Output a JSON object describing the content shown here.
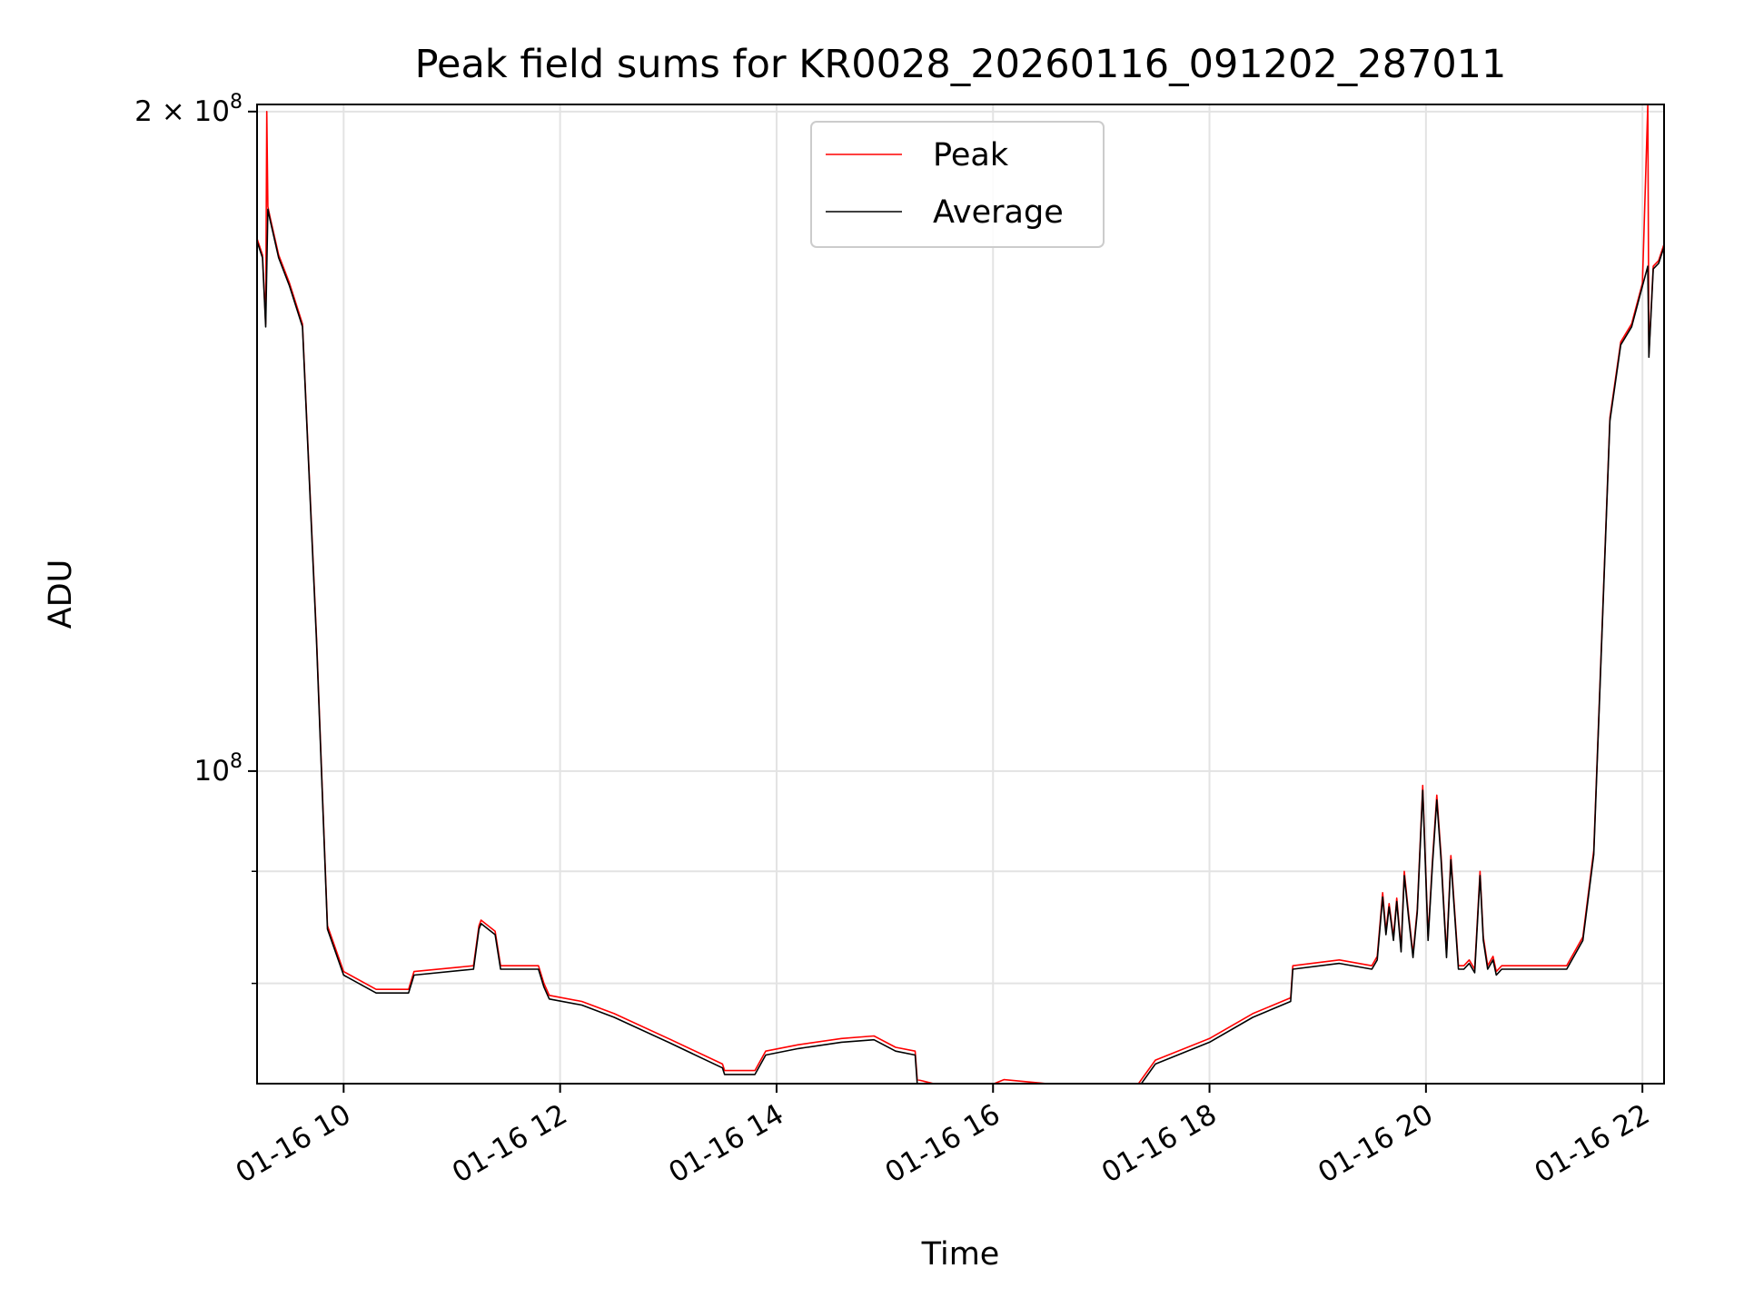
{
  "chart_data": {
    "type": "line",
    "title": "Peak field sums for KR0028_20260116_091202_287011",
    "xlabel": "Time",
    "ylabel": "ADU",
    "x_tick_labels": [
      "01-16 10",
      "01-16 12",
      "01-16 14",
      "01-16 16",
      "01-16 18",
      "01-16 20",
      "01-16 22"
    ],
    "x_tick_hours": [
      10,
      12,
      14,
      16,
      18,
      20,
      22
    ],
    "xlim_hours": [
      9.2,
      22.2
    ],
    "y_scale": "log",
    "ylim": [
      72000000,
      201500000
    ],
    "y_tick_labels": [
      {
        "value": 200000000,
        "mantissa": "2",
        "times": "×",
        "base": "10",
        "exponent": "8"
      },
      {
        "value": 100000000,
        "mantissa": "",
        "times": "",
        "base": "10",
        "exponent": "8"
      }
    ],
    "y_minor_ticks": [
      80000000,
      90000000
    ],
    "grid": true,
    "legend_position": "upper center",
    "series": [
      {
        "name": "Peak",
        "color": "#ff0000",
        "x_hours": [
          9.2,
          9.25,
          9.28,
          9.29,
          9.3,
          9.32,
          9.4,
          9.5,
          9.62,
          9.75,
          9.85,
          10.0,
          10.3,
          10.6,
          10.65,
          11.2,
          11.25,
          11.27,
          11.4,
          11.45,
          11.48,
          11.8,
          11.85,
          11.9,
          12.2,
          12.5,
          13.0,
          13.5,
          13.52,
          13.8,
          13.9,
          14.2,
          14.6,
          14.9,
          15.1,
          15.28,
          15.3,
          15.8,
          16.1,
          16.5,
          17.0,
          17.3,
          17.5,
          18.0,
          18.4,
          18.75,
          18.77,
          19.2,
          19.5,
          19.55,
          19.6,
          19.63,
          19.66,
          19.7,
          19.73,
          19.77,
          19.8,
          19.84,
          19.88,
          19.92,
          19.97,
          20.02,
          20.06,
          20.1,
          20.14,
          20.19,
          20.23,
          20.3,
          20.35,
          20.4,
          20.45,
          20.5,
          20.53,
          20.57,
          20.62,
          20.65,
          20.7,
          20.8,
          21.3,
          21.45,
          21.55,
          21.7,
          21.8,
          21.9,
          22.0,
          22.05,
          22.06,
          22.1,
          22.15,
          22.2
        ],
        "y": [
          175000000,
          172000000,
          160000000,
          200000000,
          181000000,
          179000000,
          172000000,
          167000000,
          160000000,
          115000000,
          85000000,
          81000000,
          79500000,
          79500000,
          81000000,
          81500000,
          85000000,
          85500000,
          84500000,
          81500000,
          81500000,
          81500000,
          80000000,
          79000000,
          78500000,
          77500000,
          75500000,
          73500000,
          73000000,
          73000000,
          74500000,
          75000000,
          75500000,
          75700000,
          74800000,
          74500000,
          72300000,
          71300000,
          72300000,
          72000000,
          71800000,
          71500000,
          73800000,
          75500000,
          77500000,
          78800000,
          81500000,
          82000000,
          81500000,
          82300000,
          88000000,
          84500000,
          87000000,
          84000000,
          87500000,
          83000000,
          90000000,
          86000000,
          82500000,
          86500000,
          98500000,
          84000000,
          91000000,
          97500000,
          91500000,
          82500000,
          91500000,
          81500000,
          81500000,
          82000000,
          81200000,
          90000000,
          84000000,
          81500000,
          82300000,
          81000000,
          81500000,
          81500000,
          81500000,
          84000000,
          92000000,
          145000000,
          157000000,
          160000000,
          167000000,
          201500000,
          155000000,
          170000000,
          171000000,
          174000000
        ]
      },
      {
        "name": "Average",
        "color": "#000000",
        "x_hours": [
          9.2,
          9.25,
          9.28,
          9.3,
          9.32,
          9.4,
          9.5,
          9.62,
          9.75,
          9.85,
          10.0,
          10.3,
          10.6,
          10.65,
          11.2,
          11.25,
          11.27,
          11.4,
          11.45,
          11.48,
          11.8,
          11.85,
          11.9,
          12.2,
          12.5,
          13.0,
          13.5,
          13.52,
          13.8,
          13.9,
          14.2,
          14.6,
          14.9,
          15.1,
          15.28,
          15.3,
          15.8,
          16.1,
          16.5,
          17.0,
          17.3,
          17.5,
          18.0,
          18.4,
          18.75,
          18.77,
          19.2,
          19.5,
          19.55,
          19.6,
          19.63,
          19.66,
          19.7,
          19.73,
          19.77,
          19.8,
          19.84,
          19.88,
          19.92,
          19.97,
          20.02,
          20.06,
          20.1,
          20.14,
          20.19,
          20.23,
          20.3,
          20.35,
          20.4,
          20.45,
          20.5,
          20.53,
          20.57,
          20.62,
          20.65,
          20.7,
          20.8,
          21.3,
          21.45,
          21.55,
          21.7,
          21.8,
          21.9,
          22.0,
          22.05,
          22.06,
          22.1,
          22.15,
          22.2
        ],
        "y": [
          174500000,
          171500000,
          159500000,
          180500000,
          178500000,
          171500000,
          166500000,
          159500000,
          114500000,
          84700000,
          80700000,
          79200000,
          79200000,
          80700000,
          81200000,
          84700000,
          85200000,
          84200000,
          81200000,
          81200000,
          81200000,
          79700000,
          78700000,
          78200000,
          77200000,
          75200000,
          73200000,
          72700000,
          72700000,
          74200000,
          74700000,
          75200000,
          75400000,
          74500000,
          74200000,
          72000000,
          71000000,
          72000000,
          71700000,
          71500000,
          71200000,
          73500000,
          75200000,
          77200000,
          78500000,
          81200000,
          81700000,
          81200000,
          82000000,
          87600000,
          84200000,
          86700000,
          83700000,
          87200000,
          82700000,
          89600000,
          85700000,
          82200000,
          86200000,
          98000000,
          83700000,
          90600000,
          97000000,
          91100000,
          82200000,
          91100000,
          81200000,
          81200000,
          81700000,
          80900000,
          89600000,
          83700000,
          81200000,
          82000000,
          80700000,
          81200000,
          81200000,
          81200000,
          83700000,
          91600000,
          144500000,
          156500000,
          159500000,
          166500000,
          170000000,
          154500000,
          169500000,
          170500000,
          173500000
        ]
      }
    ]
  }
}
